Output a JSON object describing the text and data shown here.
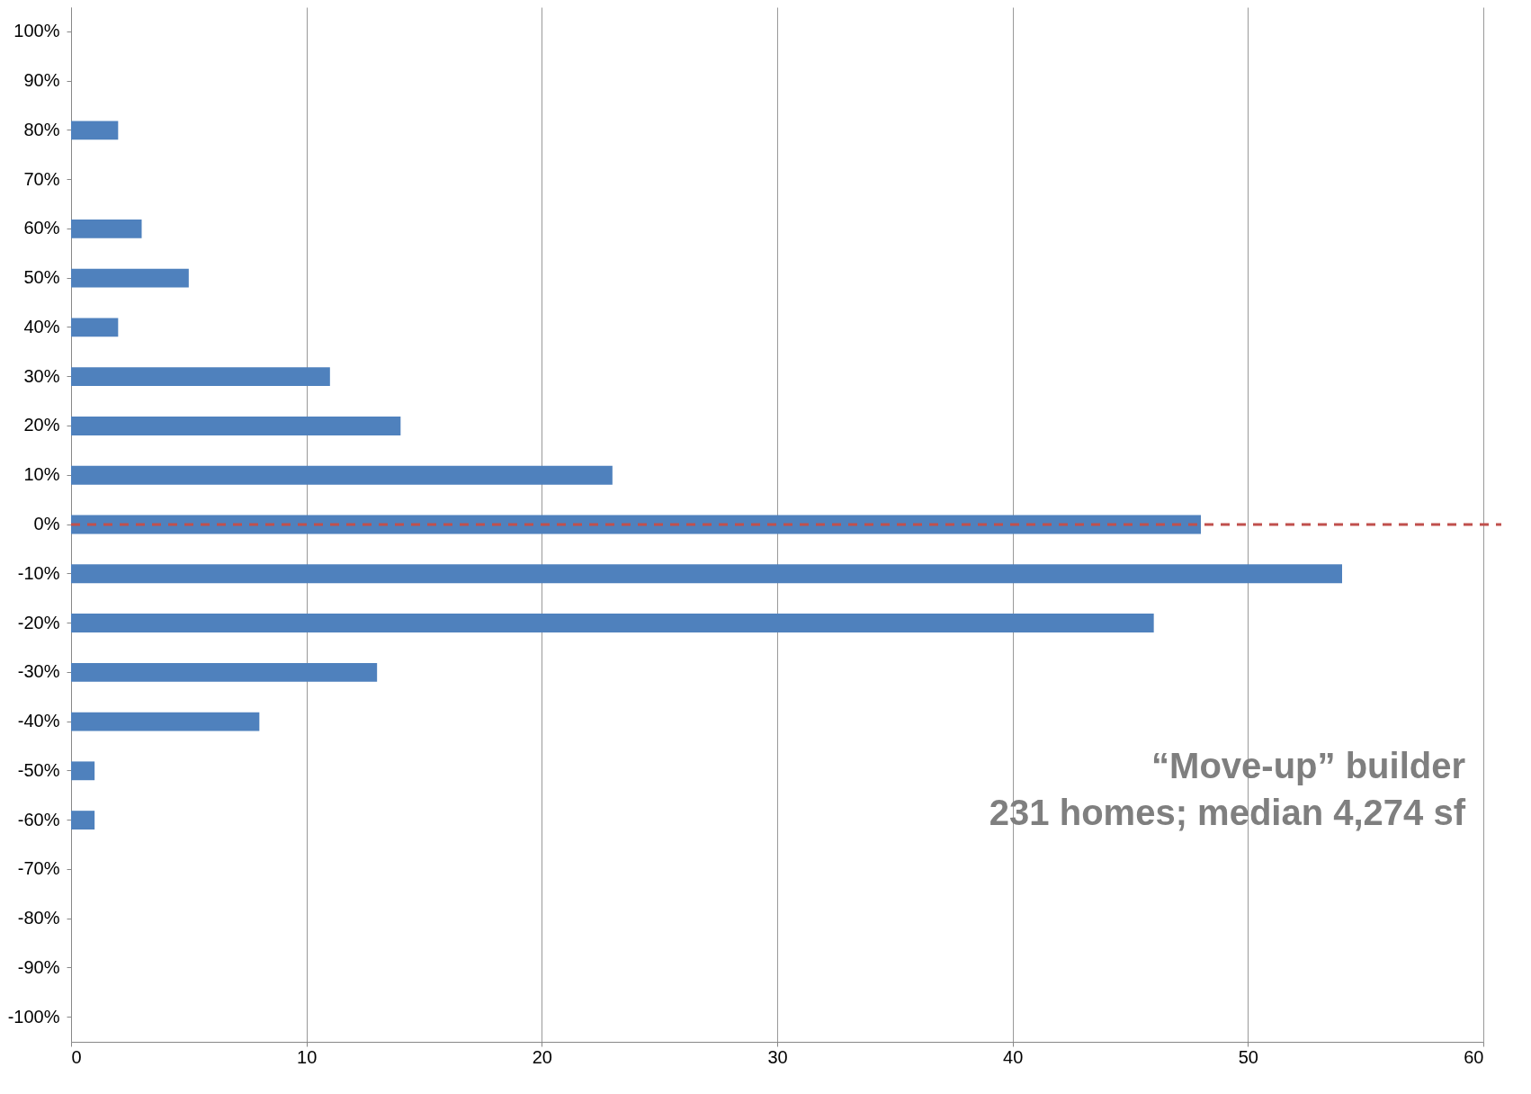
{
  "chart_data": {
    "type": "bar",
    "orientation": "horizontal",
    "categories": [
      "100%",
      "90%",
      "80%",
      "70%",
      "60%",
      "50%",
      "40%",
      "30%",
      "20%",
      "10%",
      "0%",
      "-10%",
      "-20%",
      "-30%",
      "-40%",
      "-50%",
      "-60%",
      "-70%",
      "-80%",
      "-90%",
      "-100%"
    ],
    "values": [
      0,
      0,
      2,
      0,
      3,
      5,
      2,
      11,
      14,
      23,
      48,
      54,
      46,
      13,
      8,
      1,
      1,
      0,
      0,
      0,
      0
    ],
    "color": "#4f81bd",
    "xlim": [
      0,
      60
    ],
    "xticks": [
      0,
      10,
      20,
      30,
      40,
      50,
      60
    ],
    "grid": "x",
    "ref_lines": [
      {
        "axis": "y",
        "value": "0%",
        "color": "#c0504d",
        "line_style": "dashed"
      }
    ],
    "annotations": [
      "“Move-up” builder",
      "231 homes;  median 4,274 sf"
    ]
  }
}
